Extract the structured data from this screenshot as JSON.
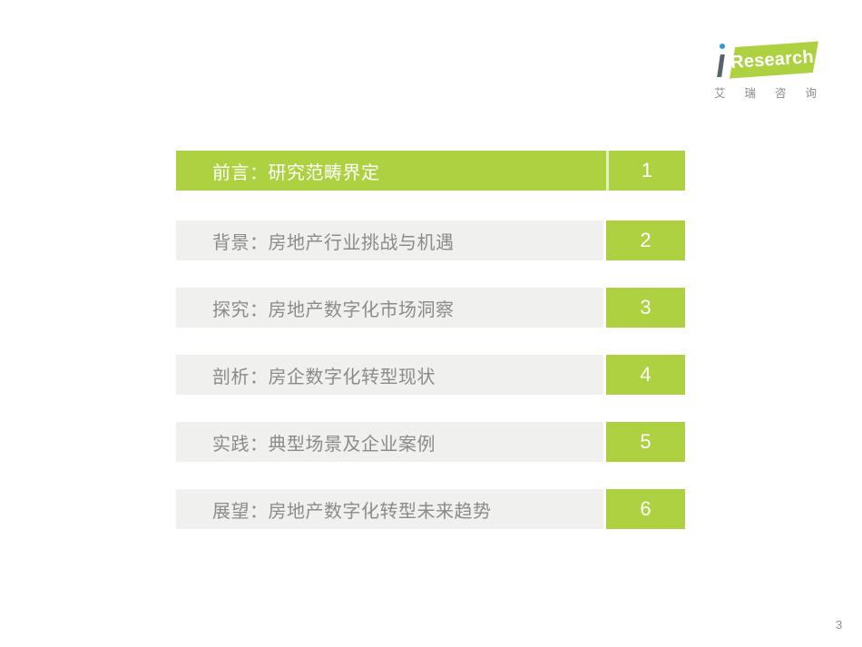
{
  "colors": {
    "accent_green": "#ADD140",
    "bar_gray": "#F0F0EE",
    "label_gray": "#8B8B8B",
    "logo_dot_blue": "#2E9BD6"
  },
  "logo": {
    "brand_i": "ı",
    "brand_text": "Research",
    "subtext_chars": [
      "艾",
      "瑞",
      "咨",
      "询"
    ]
  },
  "toc": {
    "rows": [
      {
        "label": "前言：研究范畴界定",
        "page": "1",
        "active": true
      },
      {
        "label": "背景：房地产行业挑战与机遇",
        "page": "2",
        "active": false
      },
      {
        "label": "探究：房地产数字化市场洞察",
        "page": "3",
        "active": false
      },
      {
        "label": "剖析：房企数字化转型现状",
        "page": "4",
        "active": false
      },
      {
        "label": "实践：典型场景及企业案例",
        "page": "5",
        "active": false
      },
      {
        "label": "展望：房地产数字化转型未来趋势",
        "page": "6",
        "active": false
      }
    ]
  },
  "footer": {
    "page_number": "3"
  }
}
